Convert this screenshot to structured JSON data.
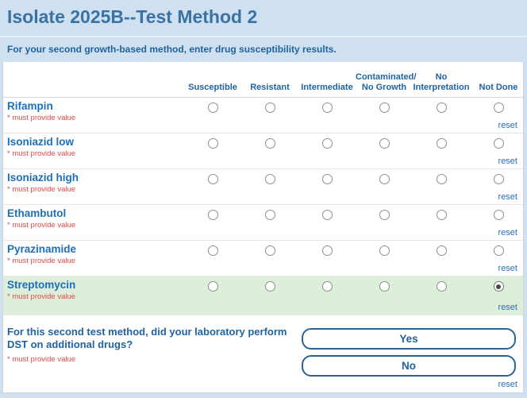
{
  "page": {
    "title": "Isolate 2025B--Test Method 2",
    "subtitle": "For your second growth-based method, enter drug susceptibility results."
  },
  "table": {
    "required_note": "* must provide value",
    "reset_label": "reset",
    "columns": [
      {
        "label": "Susceptible",
        "line1": "",
        "line2": "Susceptible"
      },
      {
        "label": "Resistant",
        "line1": "",
        "line2": "Resistant"
      },
      {
        "label": "Intermediate",
        "line1": "",
        "line2": "Intermediate"
      },
      {
        "label": "Contaminated/No Growth",
        "line1": "Contaminated/",
        "line2": "No Growth"
      },
      {
        "label": "No Interpretation",
        "line1": "No",
        "line2": "Interpretation"
      },
      {
        "label": "Not Done",
        "line1": "",
        "line2": "Not Done"
      }
    ],
    "rows": [
      {
        "drug": "Rifampin",
        "selected_index": null,
        "selected_label": null,
        "highlighted": false
      },
      {
        "drug": "Isoniazid low",
        "selected_index": null,
        "selected_label": null,
        "highlighted": false
      },
      {
        "drug": "Isoniazid high",
        "selected_index": null,
        "selected_label": null,
        "highlighted": false
      },
      {
        "drug": "Ethambutol",
        "selected_index": null,
        "selected_label": null,
        "highlighted": false
      },
      {
        "drug": "Pyrazinamide",
        "selected_index": null,
        "selected_label": null,
        "highlighted": false
      },
      {
        "drug": "Streptomycin",
        "selected_index": 5,
        "selected_label": "Not Done",
        "highlighted": true
      }
    ]
  },
  "additional_question": {
    "text": "For this second test method, did your laboratory perform DST on additional drugs?",
    "required_note": "* must provide value",
    "yes_label": "Yes",
    "no_label": "No",
    "reset_label": "reset"
  },
  "colors": {
    "page_background": "#cfe1f0",
    "title_text": "#3a73a3",
    "heading_blue": "#20639e",
    "drug_name_blue": "#1c6fb8",
    "required_red": "#dd4b4b",
    "link_blue": "#2b6cb5",
    "button_border": "#2a6496",
    "highlight_green": "#ddefdb"
  }
}
